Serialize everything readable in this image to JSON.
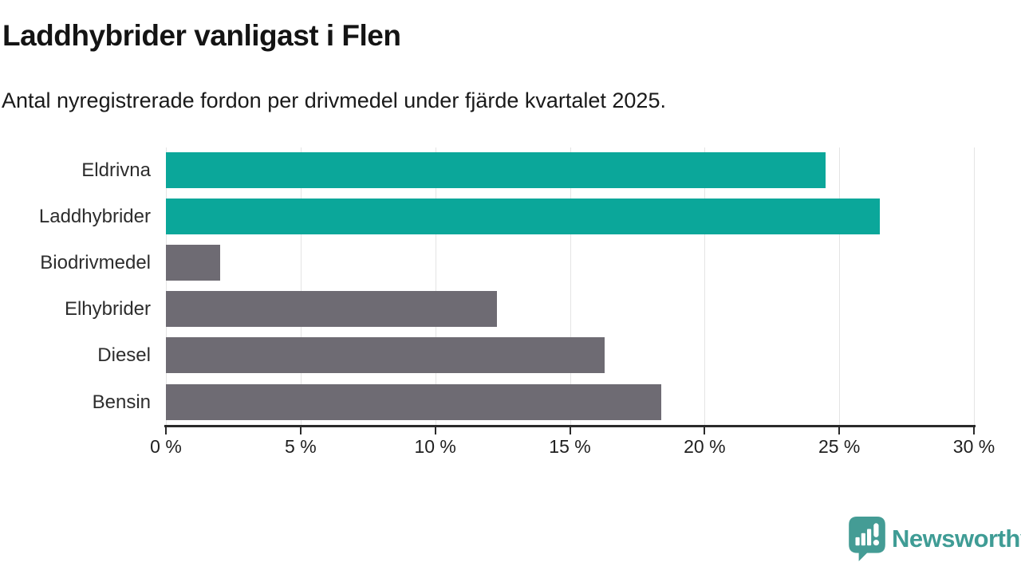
{
  "header": {
    "title": "Laddhybrider vanligast i Flen",
    "subtitle": "Antal nyregistrerade fordon per drivmedel under fjärde kvartalet 2025."
  },
  "chart_data": {
    "type": "bar",
    "orientation": "horizontal",
    "title": "Laddhybrider vanligast i Flen",
    "subtitle": "Antal nyregistrerade fordon per drivmedel under fjärde kvartalet 2025.",
    "categories": [
      "Eldrivna",
      "Laddhybrider",
      "Biodrivmedel",
      "Elhybrider",
      "Diesel",
      "Bensin"
    ],
    "values": [
      24.5,
      26.5,
      2.0,
      12.3,
      16.3,
      18.4
    ],
    "unit": "%",
    "bar_colors": [
      "#0ba79a",
      "#0ba79a",
      "#6e6b73",
      "#6e6b73",
      "#6e6b73",
      "#6e6b73"
    ],
    "highlight_color": "#0ba79a",
    "default_color": "#6e6b73",
    "xlabel": "",
    "ylabel": "",
    "xlim": [
      0,
      30
    ],
    "x_ticks": [
      0,
      5,
      10,
      15,
      20,
      25,
      30
    ],
    "x_tick_labels": [
      "0 %",
      "5 %",
      "10 %",
      "15 %",
      "20 %",
      "25 %",
      "30 %"
    ],
    "grid": true,
    "gridline_color": "#e4e4e4",
    "legend": "none"
  },
  "footer": {
    "brand": "Newsworthy",
    "brand_color": "#3f9c95"
  }
}
